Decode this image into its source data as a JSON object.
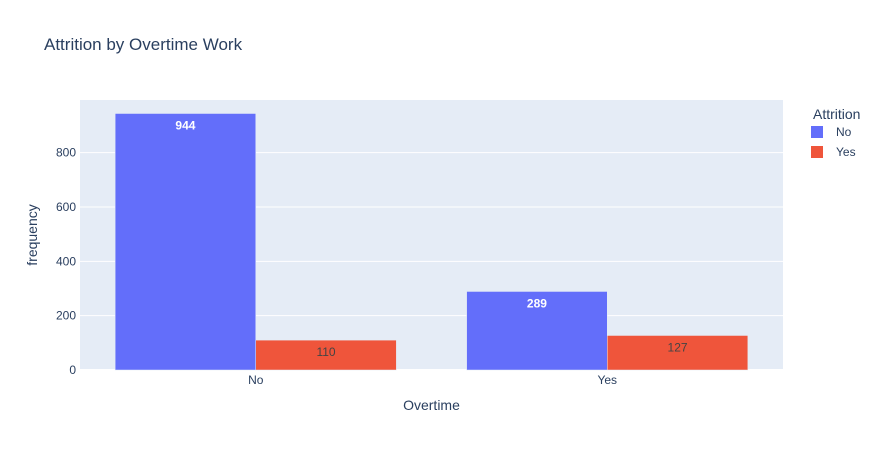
{
  "chart_data": {
    "type": "bar",
    "barmode": "group",
    "title": "Attrition by Overtime Work",
    "xlabel": "Overtime",
    "ylabel": "frequency",
    "categories": [
      "No",
      "Yes"
    ],
    "series": [
      {
        "name": "No",
        "values": [
          944,
          289
        ],
        "color": "#636efa",
        "label_color": "#ffffff"
      },
      {
        "name": "Yes",
        "values": [
          110,
          127
        ],
        "color": "#ef553b",
        "label_color": "#444444"
      }
    ],
    "ylim": [
      0,
      993.7
    ],
    "yticks": [
      0,
      200,
      400,
      600,
      800
    ],
    "grid": true,
    "legend": {
      "title": "Attrition",
      "position": "top-right"
    },
    "plot_bg": "#e5ecf6"
  }
}
